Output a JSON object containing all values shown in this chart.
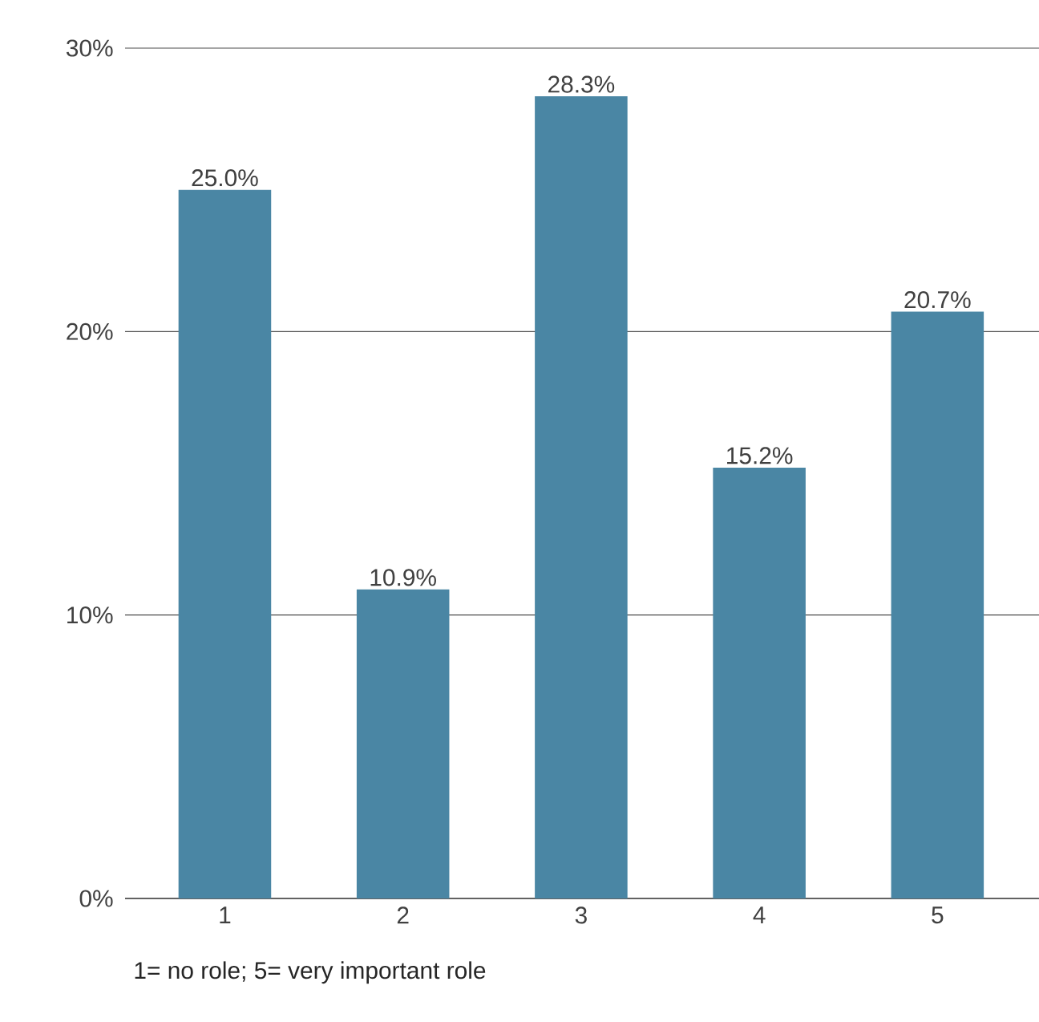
{
  "chart_data": {
    "type": "bar",
    "xlabel": "1= no role; 5= very important role",
    "categories": [
      "1",
      "2",
      "3",
      "4",
      "5"
    ],
    "values": [
      25.0,
      10.9,
      28.3,
      15.2,
      20.7
    ],
    "value_labels": [
      "25.0%",
      "10.9%",
      "28.3%",
      "15.2%",
      "20.7%"
    ],
    "color": "#4a86a4",
    "ylim": [
      0,
      30
    ],
    "yticks": [
      {
        "value": 0,
        "label": "0%"
      },
      {
        "value": 10,
        "label": "10%"
      },
      {
        "value": 20,
        "label": "20%"
      },
      {
        "value": 30,
        "label": "30%"
      }
    ],
    "grid": "y"
  }
}
